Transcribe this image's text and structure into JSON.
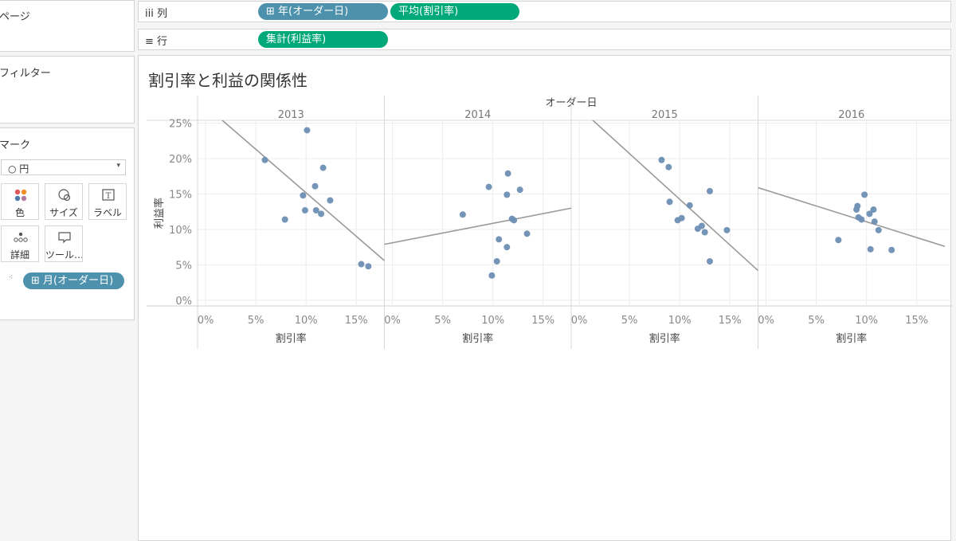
{
  "panels": {
    "pages": "ページ",
    "filters": "フィルター",
    "marks": "マーク"
  },
  "marks": {
    "type": "○ 円",
    "buttons": [
      {
        "label": "色",
        "icon": "color-dots-icon"
      },
      {
        "label": "サイズ",
        "icon": "size-icon"
      },
      {
        "label": "ラベル",
        "icon": "label-icon"
      },
      {
        "label": "詳細",
        "icon": "detail-icon"
      },
      {
        "label": "ツール…",
        "icon": "tooltip-icon"
      }
    ],
    "detail_pill": "⊞ 月(オーダー日)"
  },
  "shelves": {
    "columns_label": "iii 列",
    "rows_label": "≡ 行",
    "columns_pills": [
      "⊞ 年(オーダー日)",
      "平均(割引率)"
    ],
    "rows_pills": [
      "集計(利益率)"
    ]
  },
  "view": {
    "title": "割引率と利益の関係性"
  },
  "chart_data": {
    "type": "scatter",
    "title": "割引率と利益の関係性",
    "column_header": "オーダー日",
    "xlabel": "割引率",
    "ylabel": "利益率",
    "xlim": [
      -0.008,
      0.178
    ],
    "ylim": [
      -0.008,
      0.254
    ],
    "x_ticks": [
      0,
      0.05,
      0.1,
      0.15
    ],
    "x_tick_labels": [
      "0%",
      "5%",
      "10%",
      "15%"
    ],
    "y_ticks": [
      0,
      0.05,
      0.1,
      0.15,
      0.2,
      0.25
    ],
    "y_tick_labels": [
      "0%",
      "5%",
      "10%",
      "15%",
      "20%",
      "25%"
    ],
    "point_color": "#6d8fb3",
    "trend_color": "#999999",
    "grid": true,
    "panels": [
      {
        "year": "2013",
        "points": [
          [
            0.059,
            0.198
          ],
          [
            0.097,
            0.148
          ],
          [
            0.101,
            0.24
          ],
          [
            0.079,
            0.114
          ],
          [
            0.099,
            0.127
          ],
          [
            0.109,
            0.161
          ],
          [
            0.11,
            0.127
          ],
          [
            0.115,
            0.122
          ],
          [
            0.117,
            0.187
          ],
          [
            0.124,
            0.141
          ],
          [
            0.155,
            0.051
          ],
          [
            0.162,
            0.048
          ]
        ],
        "trend": [
          [
            0.015,
            0.256
          ],
          [
            0.178,
            0.056
          ]
        ]
      },
      {
        "year": "2014",
        "points": [
          [
            0.07,
            0.121
          ],
          [
            0.096,
            0.16
          ],
          [
            0.114,
            0.149
          ],
          [
            0.115,
            0.179
          ],
          [
            0.119,
            0.115
          ],
          [
            0.121,
            0.113
          ],
          [
            0.127,
            0.156
          ],
          [
            0.134,
            0.094
          ],
          [
            0.106,
            0.086
          ],
          [
            0.114,
            0.075
          ],
          [
            0.104,
            0.055
          ],
          [
            0.099,
            0.035
          ]
        ],
        "trend": [
          [
            -0.008,
            0.079
          ],
          [
            0.178,
            0.13
          ]
        ]
      },
      {
        "year": "2015",
        "points": [
          [
            0.082,
            0.198
          ],
          [
            0.089,
            0.188
          ],
          [
            0.09,
            0.139
          ],
          [
            0.098,
            0.113
          ],
          [
            0.102,
            0.116
          ],
          [
            0.11,
            0.134
          ],
          [
            0.118,
            0.101
          ],
          [
            0.122,
            0.105
          ],
          [
            0.125,
            0.096
          ],
          [
            0.13,
            0.154
          ],
          [
            0.147,
            0.099
          ],
          [
            0.13,
            0.055
          ]
        ],
        "trend": [
          [
            0.012,
            0.256
          ],
          [
            0.178,
            0.042
          ]
        ]
      },
      {
        "year": "2016",
        "points": [
          [
            0.072,
            0.085
          ],
          [
            0.09,
            0.128
          ],
          [
            0.092,
            0.117
          ],
          [
            0.091,
            0.133
          ],
          [
            0.095,
            0.114
          ],
          [
            0.098,
            0.149
          ],
          [
            0.103,
            0.122
          ],
          [
            0.107,
            0.128
          ],
          [
            0.108,
            0.111
          ],
          [
            0.112,
            0.099
          ],
          [
            0.104,
            0.072
          ],
          [
            0.125,
            0.071
          ]
        ],
        "trend": [
          [
            -0.008,
            0.159
          ],
          [
            0.178,
            0.076
          ]
        ]
      }
    ]
  }
}
